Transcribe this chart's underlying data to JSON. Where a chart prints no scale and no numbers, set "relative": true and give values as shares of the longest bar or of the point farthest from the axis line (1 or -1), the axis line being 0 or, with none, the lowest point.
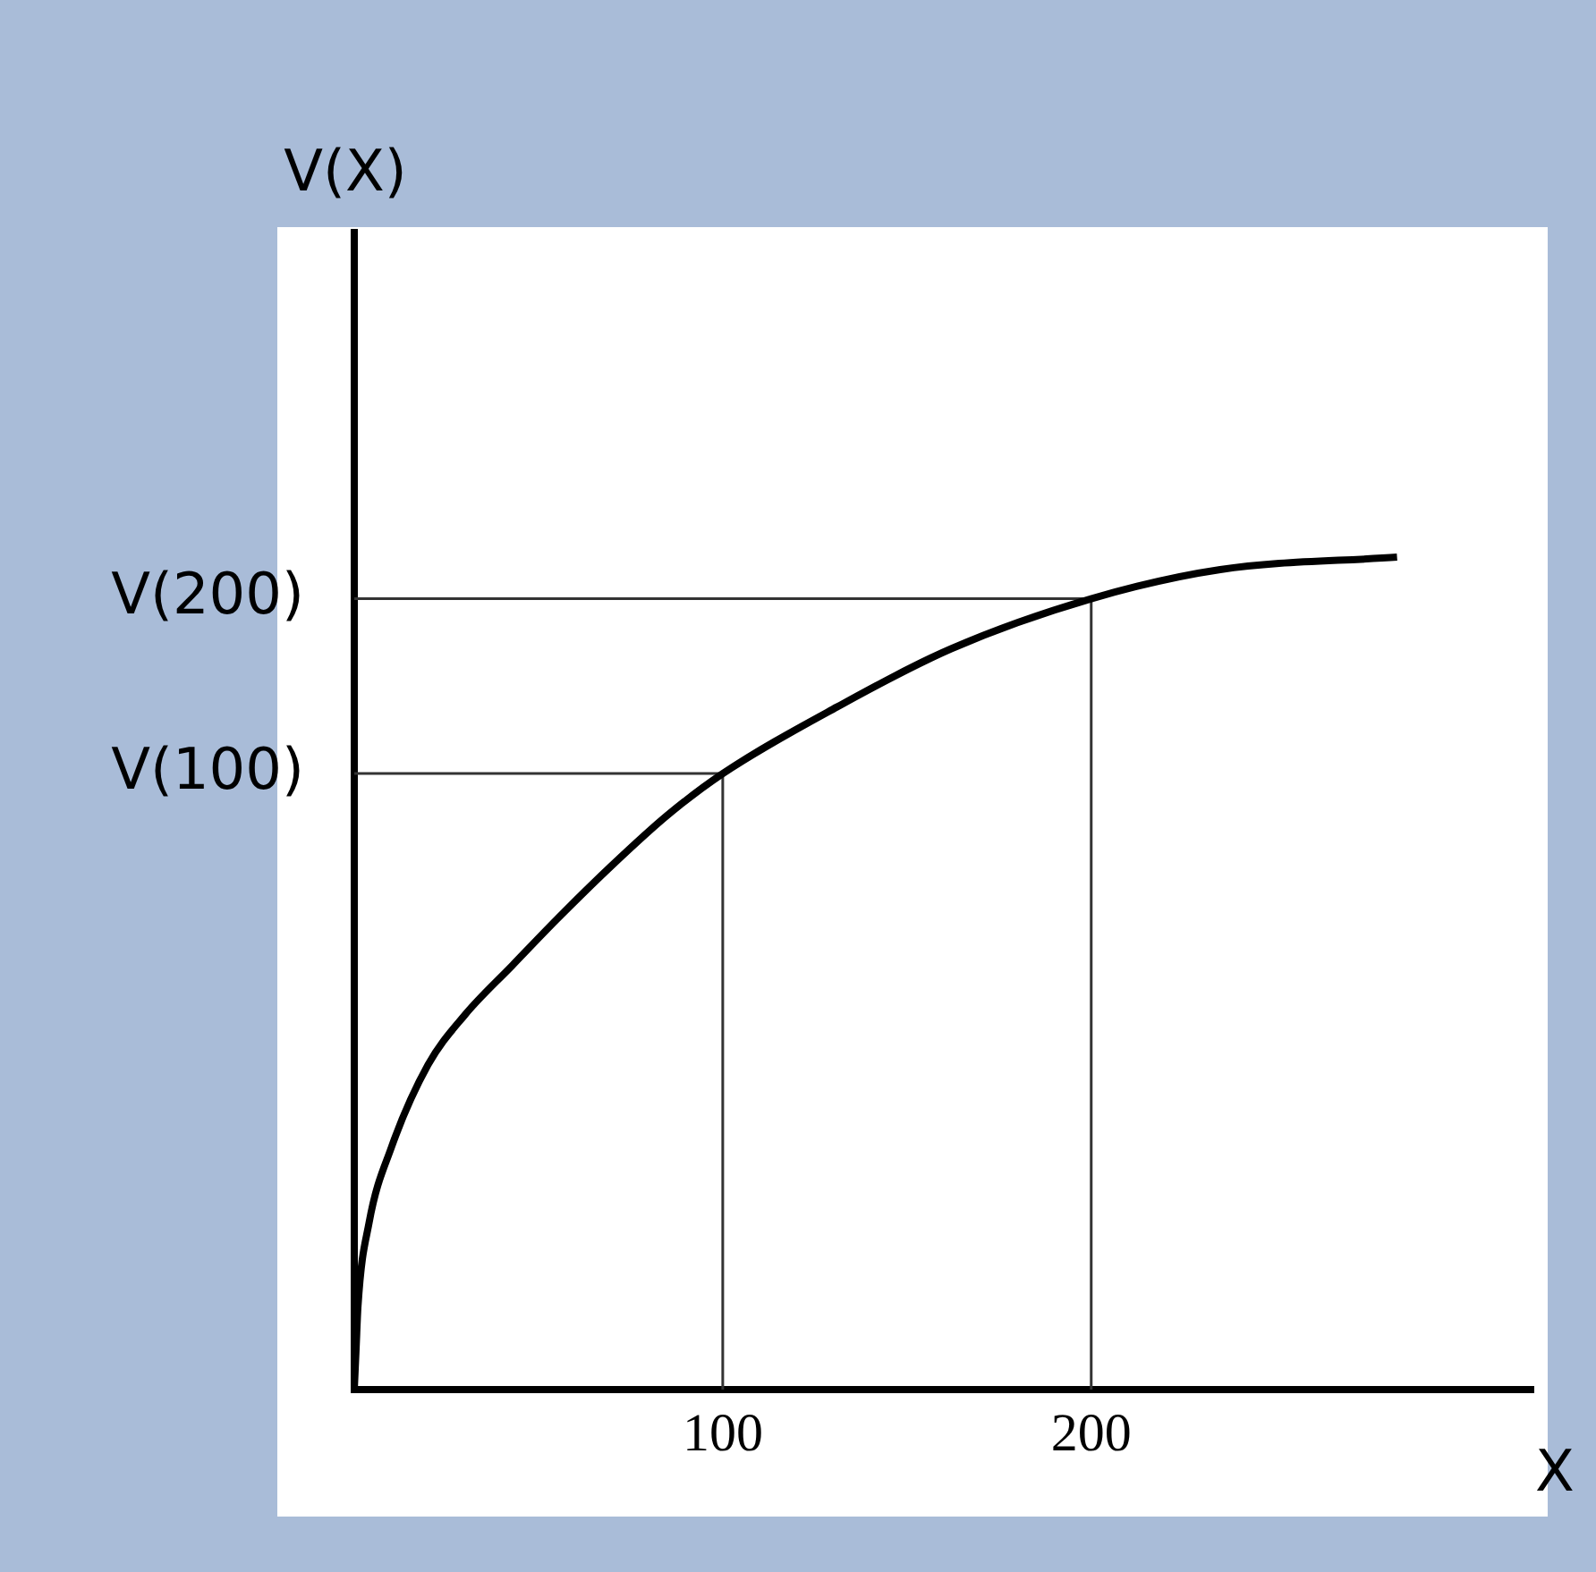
{
  "chart_data": {
    "type": "line",
    "relative": true,
    "xlabel": "X",
    "annotations": [
      "V(X)"
    ],
    "x": [
      0,
      0.5,
      1,
      4,
      10,
      20,
      30,
      43,
      55,
      70,
      85,
      100,
      131,
      162,
      200,
      235,
      283
    ],
    "series": [
      {
        "color": "#000000",
        "values": [
          0,
          0.05,
          0.1,
          0.2,
          0.29,
          0.39,
          0.45,
          0.51,
          0.565,
          0.63,
          0.69,
          0.74,
          0.82,
          0.89,
          0.95,
          0.985,
          1.0
        ]
      }
    ],
    "xlim": [
      0,
      320
    ],
    "xticks": [
      100,
      200
    ],
    "grid": false,
    "legend": false,
    "marker": "none",
    "line_style": "solid",
    "ref_lines": [
      {
        "axis": "y",
        "value": 0.74,
        "label": "V(100)",
        "color": "#333333"
      },
      {
        "axis": "y",
        "value": 0.95,
        "label": "V(200)",
        "color": "#333333"
      },
      {
        "axis": "x",
        "value": 100,
        "label": null,
        "color": "#333333"
      },
      {
        "axis": "x",
        "value": 200,
        "label": null,
        "color": "#333333"
      }
    ]
  }
}
